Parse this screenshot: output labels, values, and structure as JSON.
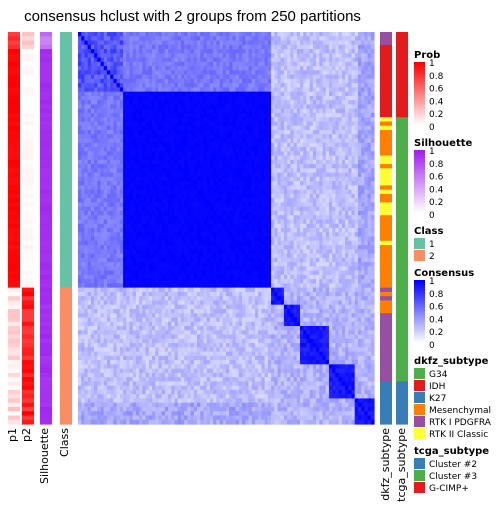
{
  "chart_data": {
    "type": "heatmap",
    "title": "consensus hclust with 2 groups from 250 partitions",
    "column_labels": [
      "p1",
      "p2",
      "Silhouette",
      "Class"
    ],
    "row_annotation_labels": [
      "dkfz_subtype",
      "tcga_subtype"
    ],
    "class_split": {
      "group1_count": 60,
      "group2_count": 32
    },
    "colors": {
      "class_1": "#66C2A5",
      "class_2": "#FC8D62",
      "prob_high": "#FF0000",
      "prob_low": "#FFFFFF",
      "silhouette_high": "#A020F0",
      "consensus_high": "#0000FF"
    },
    "legends": [
      {
        "title": "Prob",
        "type": "gradient",
        "ticks": [
          "1",
          "0.8",
          "0.6",
          "0.4",
          "0.2",
          "0"
        ],
        "color_high": "#FF0000",
        "color_low": "#FFFFFF"
      },
      {
        "title": "Silhouette",
        "type": "gradient",
        "ticks": [
          "1",
          "0.8",
          "0.6",
          "0.4",
          "0.2",
          "0"
        ],
        "color_high": "#A020F0",
        "color_low": "#FFFFFF"
      },
      {
        "title": "Class",
        "type": "discrete",
        "items": [
          {
            "label": "1",
            "color": "#66C2A5"
          },
          {
            "label": "2",
            "color": "#FC8D62"
          }
        ]
      },
      {
        "title": "Consensus",
        "type": "gradient",
        "ticks": [
          "1",
          "0.8",
          "0.6",
          "0.4",
          "0.2",
          "0"
        ],
        "color_high": "#0000FF",
        "color_low": "#FFFFFF"
      },
      {
        "title": "dkfz_subtype",
        "type": "discrete",
        "items": [
          {
            "label": "G34",
            "color": "#4DAF4A"
          },
          {
            "label": "IDH",
            "color": "#E41A1C"
          },
          {
            "label": "K27",
            "color": "#377EB8"
          },
          {
            "label": "Mesenchymal",
            "color": "#FF7F00"
          },
          {
            "label": "RTK I PDGFRA",
            "color": "#984EA3"
          },
          {
            "label": "RTK II Classic",
            "color": "#FFFF33"
          }
        ]
      },
      {
        "title": "tcga_subtype",
        "type": "discrete",
        "items": [
          {
            "label": "Cluster #2",
            "color": "#377EB8"
          },
          {
            "label": "Cluster #3",
            "color": "#4DAF4A"
          },
          {
            "label": "G-CIMP+",
            "color": "#E41A1C"
          }
        ]
      }
    ]
  }
}
